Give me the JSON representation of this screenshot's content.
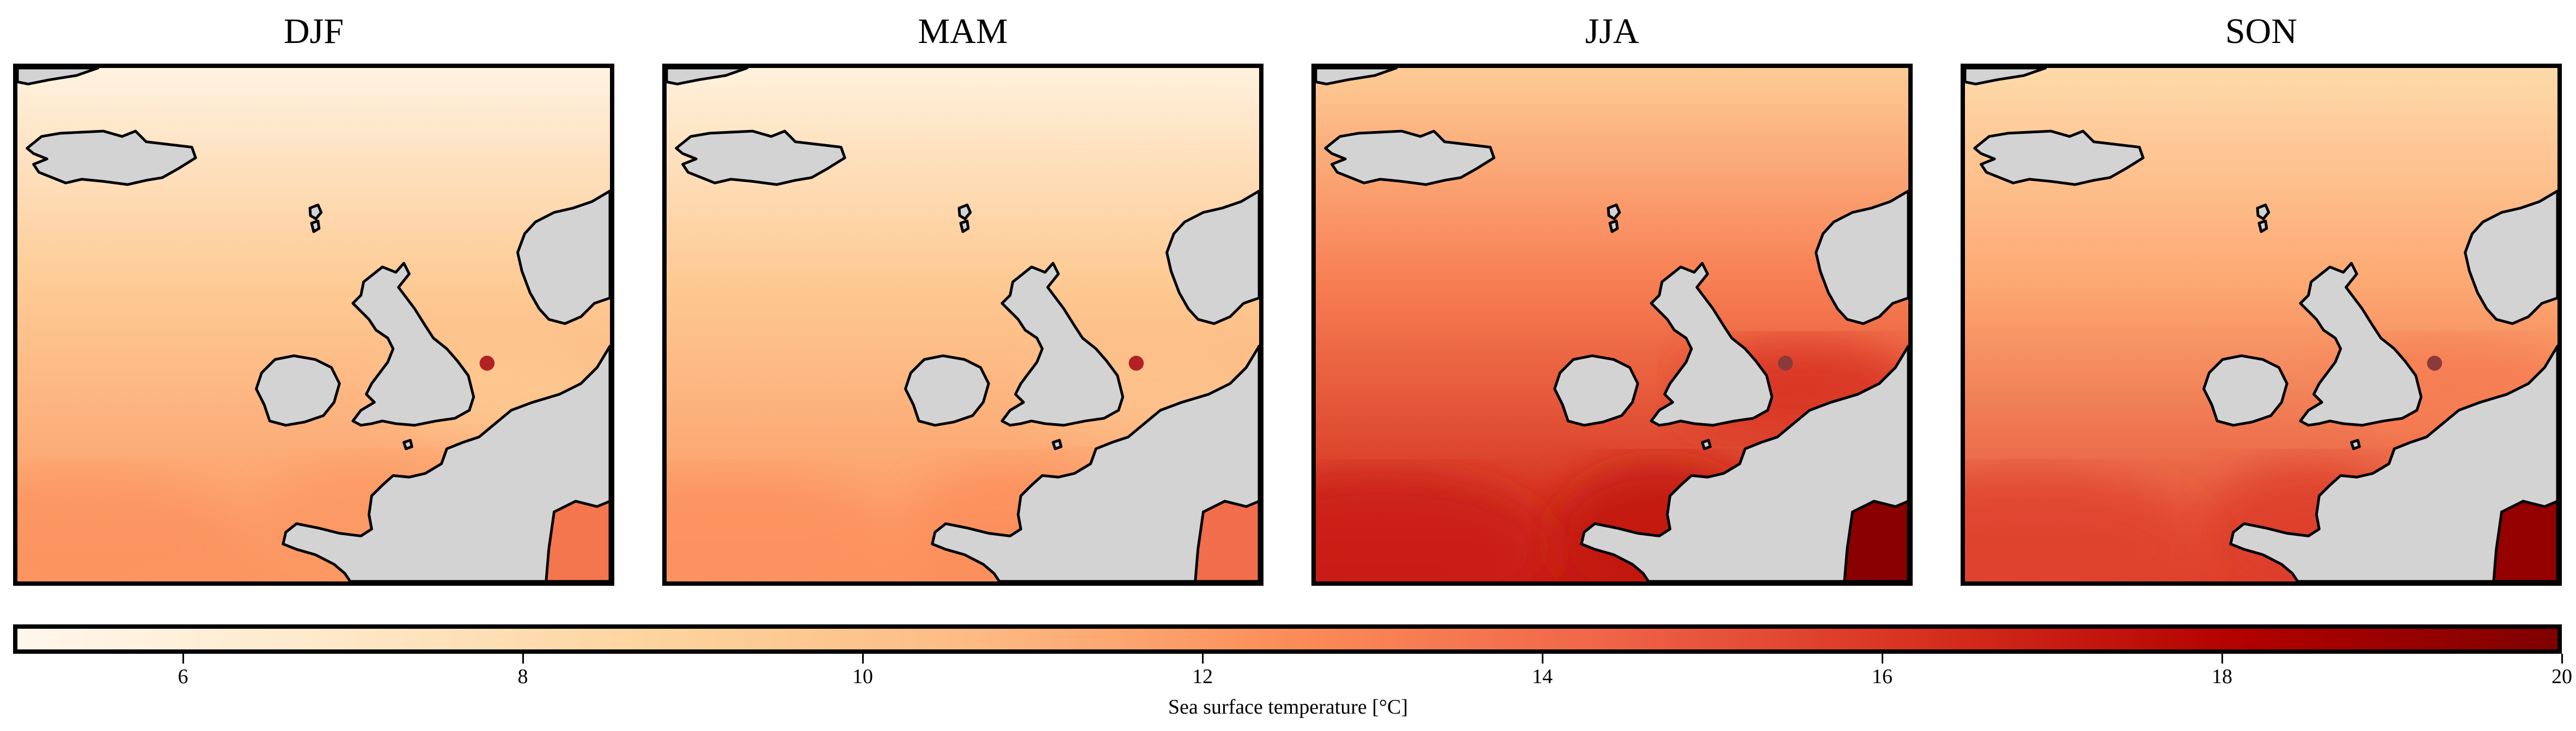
{
  "panels": [
    {
      "title": "DJF",
      "sst": {
        "north": 5.6,
        "mid": 9.4,
        "south": 12.2,
        "channel": 9.6,
        "biscay": 12.0,
        "med": 13.6
      },
      "point_color": "#b22222"
    },
    {
      "title": "MAM",
      "sst": {
        "north": 5.8,
        "mid": 9.6,
        "south": 12.3,
        "channel": 10.0,
        "biscay": 12.4,
        "med": 14.0
      },
      "point_color": "#b22222"
    },
    {
      "title": "JJA",
      "sst": {
        "north": 9.4,
        "mid": 13.2,
        "south": 17.0,
        "channel": 16.2,
        "biscay": 17.4,
        "med": 19.6
      },
      "point_color": "#8b3a3a"
    },
    {
      "title": "SON",
      "sst": {
        "north": 8.2,
        "mid": 11.4,
        "south": 15.6,
        "channel": 13.2,
        "biscay": 15.8,
        "med": 19.2
      },
      "point_color": "#8b3a3a"
    }
  ],
  "colorbar": {
    "min": 5,
    "max": 20,
    "ticks": [
      6,
      8,
      10,
      12,
      14,
      16,
      18,
      20
    ],
    "label": "Sea surface temperature [°C]",
    "colormap": "OrRd",
    "stops": [
      "#fff7ec",
      "#fee8c8",
      "#fdd49e",
      "#fdbb84",
      "#fc8d59",
      "#ef6548",
      "#d7301f",
      "#b30000",
      "#7f0000"
    ]
  },
  "land_color": "#d3d3d3",
  "coast_color": "#000000"
}
